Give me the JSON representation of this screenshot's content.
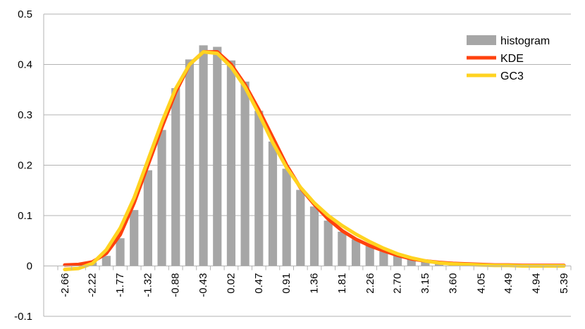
{
  "chart_data": {
    "type": "bar",
    "title": "",
    "xlabel": "",
    "ylabel": "",
    "ylim": [
      -0.1,
      0.5
    ],
    "yticks": [
      "-0.1",
      "0",
      "0.1",
      "0.2",
      "0.3",
      "0.4",
      "0.5"
    ],
    "grid": "horizontal",
    "legend_position": "top-right",
    "x": [
      -2.66,
      -2.44,
      -2.22,
      -1.99,
      -1.77,
      -1.55,
      -1.32,
      -1.1,
      -0.88,
      -0.66,
      -0.43,
      -0.21,
      0.02,
      0.24,
      0.47,
      0.69,
      0.91,
      1.14,
      1.36,
      1.58,
      1.81,
      2.03,
      2.26,
      2.48,
      2.7,
      2.93,
      3.15,
      3.37,
      3.6,
      3.82,
      4.05,
      4.27,
      4.49,
      4.72,
      4.94,
      5.16,
      5.39
    ],
    "xtick_labels": [
      "-2.66",
      "-2.22",
      "-1.77",
      "-1.32",
      "-0.88",
      "-0.43",
      "0.02",
      "0.47",
      "0.91",
      "1.36",
      "1.81",
      "2.26",
      "2.70",
      "3.15",
      "3.60",
      "4.05",
      "4.49",
      "4.94",
      "5.39"
    ],
    "series": [
      {
        "name": "histogram",
        "kind": "bar",
        "color": "#a6a6a6",
        "values": [
          0.0,
          0.002,
          0.007,
          0.02,
          0.055,
          0.111,
          0.19,
          0.27,
          0.353,
          0.41,
          0.438,
          0.435,
          0.408,
          0.366,
          0.308,
          0.247,
          0.193,
          0.151,
          0.118,
          0.09,
          0.068,
          0.053,
          0.04,
          0.029,
          0.02,
          0.014,
          0.009,
          0.006,
          0.004,
          0.003,
          0.002,
          0.001,
          0.001,
          0.0,
          0.0,
          0.0,
          0.0
        ]
      },
      {
        "name": "KDE",
        "kind": "line",
        "color": "#ff420e",
        "values": [
          0.002,
          0.003,
          0.008,
          0.025,
          0.062,
          0.125,
          0.2,
          0.275,
          0.345,
          0.4,
          0.425,
          0.425,
          0.4,
          0.36,
          0.31,
          0.255,
          0.2,
          0.155,
          0.122,
          0.093,
          0.07,
          0.053,
          0.04,
          0.03,
          0.021,
          0.014,
          0.01,
          0.007,
          0.005,
          0.004,
          0.003,
          0.002,
          0.002,
          0.001,
          0.001,
          0.001,
          0.001
        ]
      },
      {
        "name": "GC3",
        "kind": "line",
        "color": "#ffd320",
        "values": [
          -0.007,
          -0.005,
          0.005,
          0.032,
          0.075,
          0.135,
          0.21,
          0.285,
          0.352,
          0.4,
          0.425,
          0.422,
          0.395,
          0.355,
          0.302,
          0.245,
          0.195,
          0.156,
          0.125,
          0.1,
          0.08,
          0.063,
          0.048,
          0.035,
          0.024,
          0.016,
          0.01,
          0.006,
          0.004,
          0.003,
          0.002,
          0.001,
          0.001,
          0.0,
          0.0,
          0.0,
          0.0
        ]
      }
    ]
  }
}
